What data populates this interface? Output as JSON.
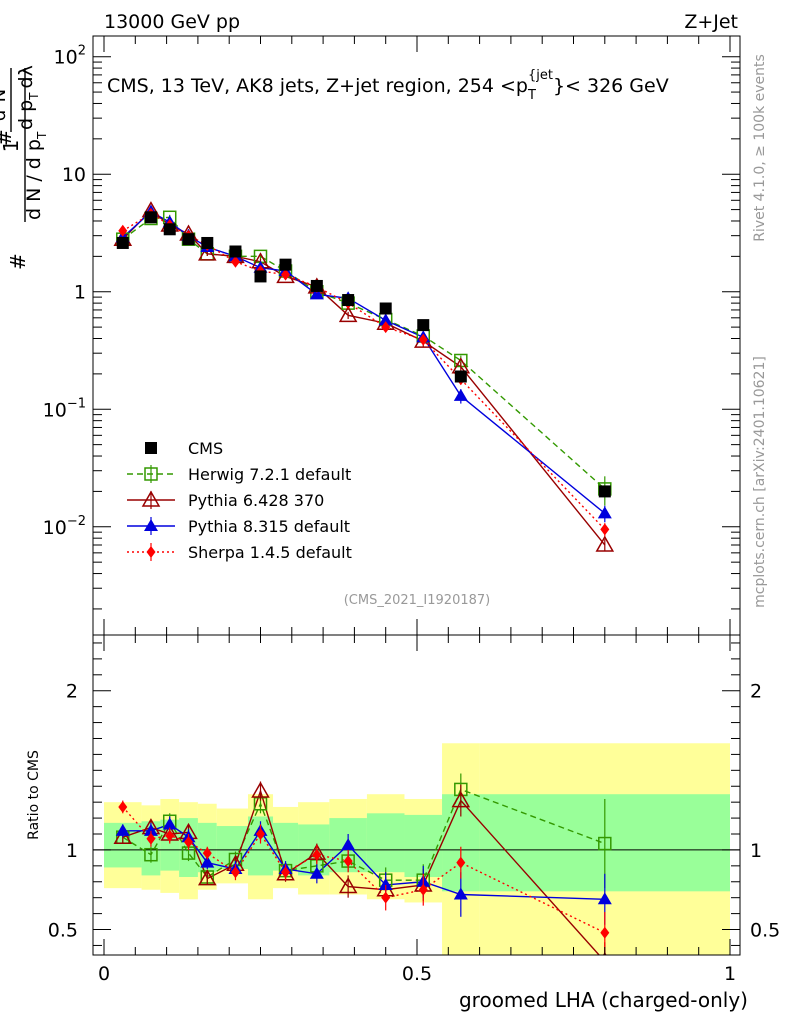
{
  "header": {
    "left": "13000 GeV pp",
    "right": "Z+Jet"
  },
  "side_labels": {
    "rivet": "Rivet 4.1.0, ≥ 100k events",
    "mcplots": "mcplots.cern.ch [arXiv:2401.10621]"
  },
  "chart_data": {
    "type": "line",
    "title": "CMS, 13 TeV, AK8 jets, Z+jet region, 254 <p_T^{jet}< 326 GeV",
    "title_parts": {
      "pre": "CMS, 13 TeV, AK8 jets, Z+jet region, 254 <p",
      "sub": "T",
      "sup": "{jet",
      "post": "}< 326 GeV"
    },
    "ylabel": "1/dN/dp_T  d²N/dp_T dλ",
    "ylabel_parts": {
      "hash1": "#",
      "one": "1",
      "hash2": "#",
      "dn": "d N / d p",
      "t": "T",
      "d2n": "d²N",
      "dpdl": "d p",
      "dl": "dλ"
    },
    "xlabel": "groomed LHA (charged-only)",
    "ratio_ylabel": "Ratio to CMS",
    "analysis_id": "(CMS_2021_I1920187)",
    "xlim": [
      0,
      1
    ],
    "ylim_main": [
      0.0012,
      150
    ],
    "ylim_ratio": [
      0.34,
      2.35
    ],
    "x_ticks": [
      "0",
      "0.5",
      "1"
    ],
    "y_ticks_main": [
      {
        "base": "10",
        "exp": "−2",
        "value": 0.01
      },
      {
        "base": "10",
        "exp": "−1",
        "value": 0.1
      },
      {
        "base": "1",
        "exp": "",
        "value": 1
      },
      {
        "base": "10",
        "exp": "",
        "value": 10
      },
      {
        "base": "10",
        "exp": "2",
        "value": 100
      }
    ],
    "y_ticks_ratio": [
      "0.5",
      "1",
      "2"
    ],
    "bins": [
      [
        0.0,
        0.06
      ],
      [
        0.06,
        0.09
      ],
      [
        0.09,
        0.12
      ],
      [
        0.12,
        0.15
      ],
      [
        0.15,
        0.18
      ],
      [
        0.18,
        0.23
      ],
      [
        0.23,
        0.27
      ],
      [
        0.27,
        0.31
      ],
      [
        0.31,
        0.36
      ],
      [
        0.36,
        0.42
      ],
      [
        0.42,
        0.48
      ],
      [
        0.48,
        0.54
      ],
      [
        0.54,
        0.6
      ],
      [
        0.6,
        1.0
      ]
    ],
    "x": [
      0.03,
      0.075,
      0.105,
      0.135,
      0.165,
      0.21,
      0.25,
      0.29,
      0.34,
      0.39,
      0.45,
      0.51,
      0.57,
      0.8
    ],
    "cms_values": [
      2.6,
      4.3,
      3.4,
      2.8,
      2.6,
      2.2,
      1.35,
      1.7,
      1.12,
      0.85,
      0.72,
      0.52,
      0.19,
      0.02
    ],
    "series": [
      {
        "name": "Herwig 7.2.1 default",
        "color": "#339900",
        "marker": "open-square",
        "dash": "6,4",
        "values": [
          2.8,
          4.2,
          4.3,
          2.8,
          2.1,
          2.0,
          2.0,
          1.5,
          1.0,
          0.8,
          0.58,
          0.42,
          0.26,
          0.021
        ],
        "ratio": [
          1.08,
          0.97,
          1.18,
          0.98,
          0.83,
          0.94,
          1.29,
          0.87,
          0.9,
          0.93,
          0.81,
          0.81,
          1.38,
          1.04
        ],
        "ratio_err": [
          0.04,
          0.05,
          0.05,
          0.05,
          0.04,
          0.05,
          0.06,
          0.05,
          0.06,
          0.07,
          0.08,
          0.1,
          0.1,
          0.28
        ]
      },
      {
        "name": "Pythia 6.428 370",
        "color": "#990000",
        "marker": "open-triangle",
        "dash": "",
        "values": [
          2.8,
          4.9,
          3.7,
          3.1,
          2.1,
          2.0,
          1.8,
          1.35,
          1.1,
          0.63,
          0.54,
          0.38,
          0.23,
          0.007
        ],
        "ratio": [
          1.08,
          1.14,
          1.1,
          1.11,
          0.82,
          0.91,
          1.37,
          0.85,
          0.98,
          0.77,
          0.75,
          0.78,
          1.31,
          0.3
        ],
        "ratio_err": [
          0.04,
          0.05,
          0.05,
          0.05,
          0.04,
          0.05,
          0.06,
          0.05,
          0.06,
          0.07,
          0.08,
          0.1,
          0.1,
          0.12
        ]
      },
      {
        "name": "Pythia 8.315 default",
        "color": "#0000dd",
        "marker": "filled-triangle",
        "dash": "",
        "values": [
          2.9,
          4.8,
          3.9,
          3.0,
          2.4,
          2.0,
          1.6,
          1.5,
          0.95,
          0.88,
          0.57,
          0.41,
          0.13,
          0.013
        ],
        "ratio": [
          1.12,
          1.12,
          1.16,
          1.08,
          0.92,
          0.88,
          1.12,
          0.88,
          0.85,
          1.03,
          0.78,
          0.8,
          0.72,
          0.69
        ],
        "ratio_err": [
          0.04,
          0.05,
          0.05,
          0.05,
          0.04,
          0.05,
          0.06,
          0.05,
          0.06,
          0.07,
          0.08,
          0.1,
          0.14,
          0.16
        ]
      },
      {
        "name": "Sherpa 1.4.5 default",
        "color": "#ff0000",
        "marker": "filled-diamond",
        "dash": "2,3",
        "values": [
          3.3,
          4.6,
          3.7,
          3.0,
          2.5,
          1.8,
          1.5,
          1.4,
          1.1,
          0.8,
          0.5,
          0.39,
          0.18,
          0.0095
        ],
        "ratio": [
          1.27,
          1.07,
          1.09,
          1.05,
          0.98,
          0.86,
          1.1,
          0.86,
          0.97,
          0.93,
          0.7,
          0.75,
          0.92,
          0.48
        ],
        "ratio_err": [
          0.04,
          0.05,
          0.05,
          0.05,
          0.04,
          0.05,
          0.06,
          0.05,
          0.06,
          0.07,
          0.08,
          0.1,
          0.1,
          0.13
        ]
      }
    ],
    "uncertainty_bands": {
      "inner_color": "#99ff99",
      "outer_color": "#ffff99",
      "inner_lo": [
        0.89,
        0.84,
        0.87,
        0.83,
        0.86,
        0.88,
        0.84,
        0.87,
        0.84,
        0.86,
        0.86,
        0.83,
        0.74,
        0.74
      ],
      "inner_hi": [
        1.17,
        1.18,
        1.19,
        1.2,
        1.17,
        1.15,
        1.21,
        1.17,
        1.16,
        1.2,
        1.23,
        1.22,
        1.35,
        1.35
      ],
      "outer_lo": [
        0.76,
        0.75,
        0.73,
        0.69,
        0.75,
        0.79,
        0.69,
        0.76,
        0.72,
        0.72,
        0.69,
        0.67,
        0.34,
        0.34
      ],
      "outer_hi": [
        1.3,
        1.28,
        1.32,
        1.3,
        1.29,
        1.26,
        1.35,
        1.27,
        1.3,
        1.32,
        1.35,
        1.32,
        1.67,
        1.67
      ]
    },
    "legend": {
      "placement": "lower-left",
      "entries": [
        {
          "label": "CMS",
          "color": "#000000",
          "marker": "filled-square",
          "dash": ""
        },
        {
          "label": "Herwig 7.2.1 default",
          "color": "#339900",
          "marker": "open-square",
          "dash": "6,4"
        },
        {
          "label": "Pythia 6.428 370",
          "color": "#990000",
          "marker": "open-triangle",
          "dash": ""
        },
        {
          "label": "Pythia 8.315 default",
          "color": "#0000dd",
          "marker": "filled-triangle",
          "dash": ""
        },
        {
          "label": "Sherpa 1.4.5 default",
          "color": "#ff0000",
          "marker": "filled-diamond",
          "dash": "2,3"
        }
      ]
    }
  }
}
